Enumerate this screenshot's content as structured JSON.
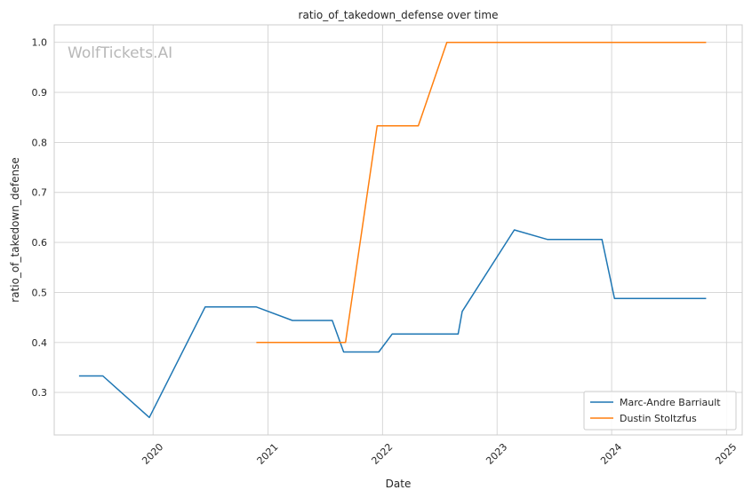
{
  "chart_data": {
    "type": "line",
    "title": "ratio_of_takedown_defense over time",
    "xlabel": "Date",
    "ylabel": "ratio_of_takedown_defense",
    "watermark": "WolfTickets.AI",
    "xlim": [
      "2019-02-20",
      "2025-02-20"
    ],
    "ylim": [
      0.215,
      1.035
    ],
    "x_ticks": [
      "2020-01-01",
      "2021-01-01",
      "2022-01-01",
      "2023-01-01",
      "2024-01-01",
      "2025-01-01"
    ],
    "x_tick_labels": [
      "2020",
      "2021",
      "2022",
      "2023",
      "2024",
      "2025"
    ],
    "y_ticks": [
      0.3,
      0.4,
      0.5,
      0.6,
      0.7,
      0.8,
      0.9,
      1.0
    ],
    "y_tick_labels": [
      "0.3",
      "0.4",
      "0.5",
      "0.6",
      "0.7",
      "0.8",
      "0.9",
      "1.0"
    ],
    "grid": true,
    "legend_position": "bottom-right",
    "series": [
      {
        "name": "Marc-Andre Barriault",
        "color": "#1f77b4",
        "points": [
          [
            "2019-05-10",
            0.333
          ],
          [
            "2019-07-25",
            0.333
          ],
          [
            "2019-12-20",
            0.25
          ],
          [
            "2020-06-15",
            0.471
          ],
          [
            "2020-11-25",
            0.471
          ],
          [
            "2021-03-20",
            0.444
          ],
          [
            "2021-07-25",
            0.444
          ],
          [
            "2021-08-30",
            0.381
          ],
          [
            "2021-12-20",
            0.381
          ],
          [
            "2022-02-01",
            0.417
          ],
          [
            "2022-08-30",
            0.417
          ],
          [
            "2022-09-12",
            0.462
          ],
          [
            "2023-02-25",
            0.625
          ],
          [
            "2023-06-10",
            0.606
          ],
          [
            "2023-12-01",
            0.606
          ],
          [
            "2024-01-10",
            0.488
          ],
          [
            "2024-10-28",
            0.488
          ]
        ]
      },
      {
        "name": "Dustin Stoltzfus",
        "color": "#ff7f0e",
        "points": [
          [
            "2020-11-25",
            0.4
          ],
          [
            "2021-09-05",
            0.4
          ],
          [
            "2021-12-15",
            0.833
          ],
          [
            "2022-04-25",
            0.833
          ],
          [
            "2022-07-25",
            1.0
          ],
          [
            "2024-10-28",
            1.0
          ]
        ]
      }
    ]
  }
}
